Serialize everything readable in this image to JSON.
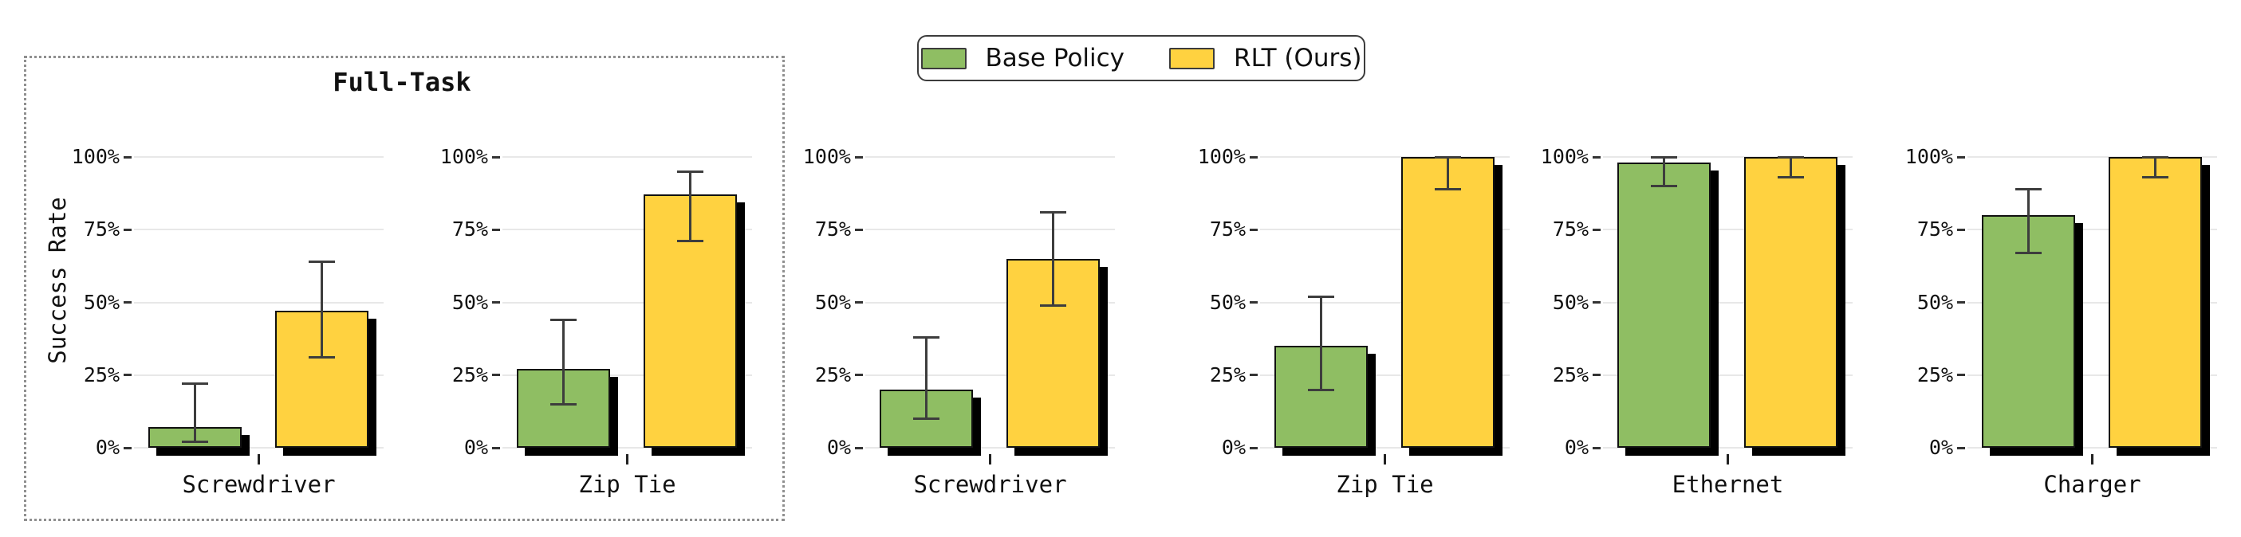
{
  "figure": {
    "background": "#ffffff",
    "group_box_label": "Full-Task"
  },
  "legend": {
    "position": "top-center",
    "items": [
      {
        "label": "Base Policy",
        "color": "#8fbe63"
      },
      {
        "label": "RLT (Ours)",
        "color": "#ffd240"
      }
    ]
  },
  "chart_data": {
    "type": "bar",
    "ylabel": "Success Rate",
    "ylim": [
      0,
      100
    ],
    "ytick_values": [
      0,
      25,
      50,
      75,
      100
    ],
    "ytick_labels": [
      "0%",
      "25%",
      "50%",
      "75%",
      "100%"
    ],
    "grid": true,
    "legend_position": "top-center",
    "series_names": [
      "Base Policy",
      "RLT (Ours)"
    ],
    "group_title": "Full-Task",
    "grouped_categories": [
      "Screwdriver",
      "Zip Tie"
    ],
    "subplots": [
      {
        "category": "Screwdriver",
        "in_full_task_group": true,
        "bars": [
          {
            "series": "Base Policy",
            "value": 7,
            "err_low": 2,
            "err_high": 22
          },
          {
            "series": "RLT (Ours)",
            "value": 47,
            "err_low": 31,
            "err_high": 64
          }
        ]
      },
      {
        "category": "Zip Tie",
        "in_full_task_group": true,
        "bars": [
          {
            "series": "Base Policy",
            "value": 27,
            "err_low": 15,
            "err_high": 44
          },
          {
            "series": "RLT (Ours)",
            "value": 87,
            "err_low": 71,
            "err_high": 95
          }
        ]
      },
      {
        "category": "Screwdriver",
        "in_full_task_group": false,
        "bars": [
          {
            "series": "Base Policy",
            "value": 20,
            "err_low": 10,
            "err_high": 38
          },
          {
            "series": "RLT (Ours)",
            "value": 65,
            "err_low": 49,
            "err_high": 81
          }
        ]
      },
      {
        "category": "Zip Tie",
        "in_full_task_group": false,
        "bars": [
          {
            "series": "Base Policy",
            "value": 35,
            "err_low": 20,
            "err_high": 52
          },
          {
            "series": "RLT (Ours)",
            "value": 100,
            "err_low": 89,
            "err_high": 100
          }
        ]
      },
      {
        "category": "Ethernet",
        "in_full_task_group": false,
        "bars": [
          {
            "series": "Base Policy",
            "value": 98,
            "err_low": 90,
            "err_high": 100
          },
          {
            "series": "RLT (Ours)",
            "value": 100,
            "err_low": 93,
            "err_high": 100
          }
        ]
      },
      {
        "category": "Charger",
        "in_full_task_group": false,
        "bars": [
          {
            "series": "Base Policy",
            "value": 80,
            "err_low": 67,
            "err_high": 89
          },
          {
            "series": "RLT (Ours)",
            "value": 100,
            "err_low": 93,
            "err_high": 100
          }
        ]
      }
    ],
    "colors": {
      "base_policy": "#8fbe63",
      "rlt": "#ffd240",
      "bar_edge": "#111111",
      "bar_shadow": "#000000",
      "error_bar": "#3d3d3d",
      "gridline": "#e8e8e8",
      "group_box_border": "#8f8f8f"
    }
  }
}
